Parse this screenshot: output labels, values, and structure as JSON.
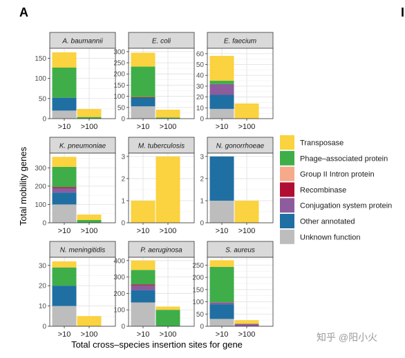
{
  "panel_letter": "A",
  "panel_letter_right": "I",
  "ylabel": "Total mobility genes",
  "xlabel": "Total cross–species insertion sites for gene",
  "watermark": "知乎 @阳小火",
  "categories": [
    ">10",
    ">100"
  ],
  "legend": [
    {
      "name": "Transposase",
      "color": "#FBD23F"
    },
    {
      "name": "Phage–associated protein",
      "color": "#3FAE49"
    },
    {
      "name": "Group II Intron protein",
      "color": "#F6A98B"
    },
    {
      "name": "Recombinase",
      "color": "#B00F33"
    },
    {
      "name": "Conjugation system protein",
      "color": "#8C5C9C"
    },
    {
      "name": "Other annotated",
      "color": "#1F6FA3"
    },
    {
      "name": "Unknown function",
      "color": "#BDBDBD"
    }
  ],
  "chart_data": [
    {
      "type": "bar",
      "title": "A. baumannii",
      "ylim": [
        0,
        175
      ],
      "yticks": [
        0,
        50,
        100,
        150
      ],
      "series": [
        {
          "name": "Unknown function",
          "values": [
            20,
            0
          ]
        },
        {
          "name": "Other annotated",
          "values": [
            32,
            0
          ]
        },
        {
          "name": "Conjugation system protein",
          "values": [
            0,
            0
          ]
        },
        {
          "name": "Recombinase",
          "values": [
            0,
            0
          ]
        },
        {
          "name": "Group II Intron protein",
          "values": [
            0,
            0
          ]
        },
        {
          "name": "Phage–associated protein",
          "values": [
            75,
            4
          ]
        },
        {
          "name": "Transposase",
          "values": [
            38,
            20
          ]
        }
      ]
    },
    {
      "type": "bar",
      "title": "E. coli",
      "ylim": [
        0,
        315
      ],
      "yticks": [
        0,
        50,
        100,
        150,
        200,
        250,
        300
      ],
      "series": [
        {
          "name": "Unknown function",
          "values": [
            55,
            0
          ]
        },
        {
          "name": "Other annotated",
          "values": [
            38,
            0
          ]
        },
        {
          "name": "Conjugation system protein",
          "values": [
            0,
            0
          ]
        },
        {
          "name": "Recombinase",
          "values": [
            3,
            0
          ]
        },
        {
          "name": "Group II Intron protein",
          "values": [
            0,
            0
          ]
        },
        {
          "name": "Phage–associated protein",
          "values": [
            137,
            5
          ]
        },
        {
          "name": "Transposase",
          "values": [
            62,
            35
          ]
        }
      ]
    },
    {
      "type": "bar",
      "title": "E. faecium",
      "ylim": [
        0,
        65
      ],
      "yticks": [
        0,
        10,
        20,
        30,
        40,
        50,
        60
      ],
      "series": [
        {
          "name": "Unknown function",
          "values": [
            9,
            0
          ]
        },
        {
          "name": "Other annotated",
          "values": [
            13,
            0
          ]
        },
        {
          "name": "Conjugation system protein",
          "values": [
            10,
            0
          ]
        },
        {
          "name": "Recombinase",
          "values": [
            0,
            0
          ]
        },
        {
          "name": "Group II Intron protein",
          "values": [
            0,
            0
          ]
        },
        {
          "name": "Phage–associated protein",
          "values": [
            3,
            0
          ]
        },
        {
          "name": "Transposase",
          "values": [
            23,
            14
          ]
        }
      ]
    },
    {
      "type": "bar",
      "title": "K. pneumoniae",
      "ylim": [
        0,
        380
      ],
      "yticks": [
        0,
        100,
        200,
        300
      ],
      "series": [
        {
          "name": "Unknown function",
          "values": [
            100,
            0
          ]
        },
        {
          "name": "Other annotated",
          "values": [
            65,
            0
          ]
        },
        {
          "name": "Conjugation system protein",
          "values": [
            25,
            0
          ]
        },
        {
          "name": "Recombinase",
          "values": [
            5,
            0
          ]
        },
        {
          "name": "Group II Intron protein",
          "values": [
            0,
            0
          ]
        },
        {
          "name": "Phage–associated protein",
          "values": [
            110,
            15
          ]
        },
        {
          "name": "Transposase",
          "values": [
            55,
            30
          ]
        }
      ]
    },
    {
      "type": "bar",
      "title": "M. tuberculosis",
      "ylim": [
        0,
        3.15
      ],
      "yticks": [
        0,
        1,
        2,
        3
      ],
      "series": [
        {
          "name": "Unknown function",
          "values": [
            0,
            0
          ]
        },
        {
          "name": "Other annotated",
          "values": [
            0,
            0
          ]
        },
        {
          "name": "Conjugation system protein",
          "values": [
            0,
            0
          ]
        },
        {
          "name": "Recombinase",
          "values": [
            0,
            0
          ]
        },
        {
          "name": "Group II Intron protein",
          "values": [
            0,
            0
          ]
        },
        {
          "name": "Phage–associated protein",
          "values": [
            0,
            0
          ]
        },
        {
          "name": "Transposase",
          "values": [
            1,
            3
          ]
        }
      ]
    },
    {
      "type": "bar",
      "title": "N. gonorrhoeae",
      "ylim": [
        0,
        3.15
      ],
      "yticks": [
        0,
        1,
        2,
        3
      ],
      "series": [
        {
          "name": "Unknown function",
          "values": [
            1,
            0
          ]
        },
        {
          "name": "Other annotated",
          "values": [
            2,
            0
          ]
        },
        {
          "name": "Conjugation system protein",
          "values": [
            0,
            0
          ]
        },
        {
          "name": "Recombinase",
          "values": [
            0,
            0
          ]
        },
        {
          "name": "Group II Intron protein",
          "values": [
            0,
            0
          ]
        },
        {
          "name": "Phage–associated protein",
          "values": [
            0,
            0
          ]
        },
        {
          "name": "Transposase",
          "values": [
            0,
            1
          ]
        }
      ]
    },
    {
      "type": "bar",
      "title": "N. meningitidis",
      "ylim": [
        0,
        34
      ],
      "yticks": [
        0,
        10,
        20,
        30
      ],
      "series": [
        {
          "name": "Unknown function",
          "values": [
            10,
            0
          ]
        },
        {
          "name": "Other annotated",
          "values": [
            10,
            0
          ]
        },
        {
          "name": "Conjugation system protein",
          "values": [
            0,
            0
          ]
        },
        {
          "name": "Recombinase",
          "values": [
            0,
            0
          ]
        },
        {
          "name": "Group II Intron protein",
          "values": [
            0,
            0
          ]
        },
        {
          "name": "Phage–associated protein",
          "values": [
            9,
            0
          ]
        },
        {
          "name": "Transposase",
          "values": [
            3,
            5
          ]
        }
      ]
    },
    {
      "type": "bar",
      "title": "P. aeruginosa",
      "ylim": [
        0,
        420
      ],
      "yticks": [
        0,
        100,
        200,
        300,
        400
      ],
      "series": [
        {
          "name": "Unknown function",
          "values": [
            145,
            0
          ]
        },
        {
          "name": "Other annotated",
          "values": [
            75,
            0
          ]
        },
        {
          "name": "Conjugation system protein",
          "values": [
            30,
            0
          ]
        },
        {
          "name": "Recombinase",
          "values": [
            5,
            0
          ]
        },
        {
          "name": "Group II Intron protein",
          "values": [
            0,
            0
          ]
        },
        {
          "name": "Phage–associated protein",
          "values": [
            88,
            100
          ]
        },
        {
          "name": "Transposase",
          "values": [
            57,
            20
          ]
        }
      ]
    },
    {
      "type": "bar",
      "title": "S. aureus",
      "ylim": [
        0,
        282
      ],
      "yticks": [
        0,
        50,
        100,
        150,
        200,
        250
      ],
      "series": [
        {
          "name": "Unknown function",
          "values": [
            30,
            0
          ]
        },
        {
          "name": "Other annotated",
          "values": [
            60,
            0
          ]
        },
        {
          "name": "Conjugation system protein",
          "values": [
            8,
            10
          ]
        },
        {
          "name": "Recombinase",
          "values": [
            0,
            0
          ]
        },
        {
          "name": "Group II Intron protein",
          "values": [
            0,
            0
          ]
        },
        {
          "name": "Phage–associated protein",
          "values": [
            145,
            0
          ]
        },
        {
          "name": "Transposase",
          "values": [
            27,
            15
          ]
        }
      ]
    }
  ]
}
